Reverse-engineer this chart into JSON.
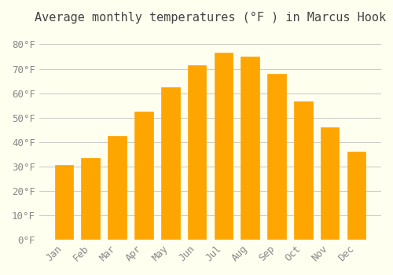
{
  "title": "Average monthly temperatures (°F ) in Marcus Hook",
  "months": [
    "Jan",
    "Feb",
    "Mar",
    "Apr",
    "May",
    "Jun",
    "Jul",
    "Aug",
    "Sep",
    "Oct",
    "Nov",
    "Dec"
  ],
  "values": [
    30.5,
    33.5,
    42.5,
    52.5,
    62.5,
    71.5,
    76.5,
    75.0,
    68.0,
    56.5,
    46.0,
    36.0
  ],
  "bar_color": "#FFA500",
  "bar_edge_color": "#FF8C00",
  "background_color": "#FFFFF0",
  "grid_color": "#CCCCCC",
  "ylim": [
    0,
    85
  ],
  "yticks": [
    0,
    10,
    20,
    30,
    40,
    50,
    60,
    70,
    80
  ],
  "title_fontsize": 11,
  "tick_fontsize": 9,
  "font_family": "monospace"
}
